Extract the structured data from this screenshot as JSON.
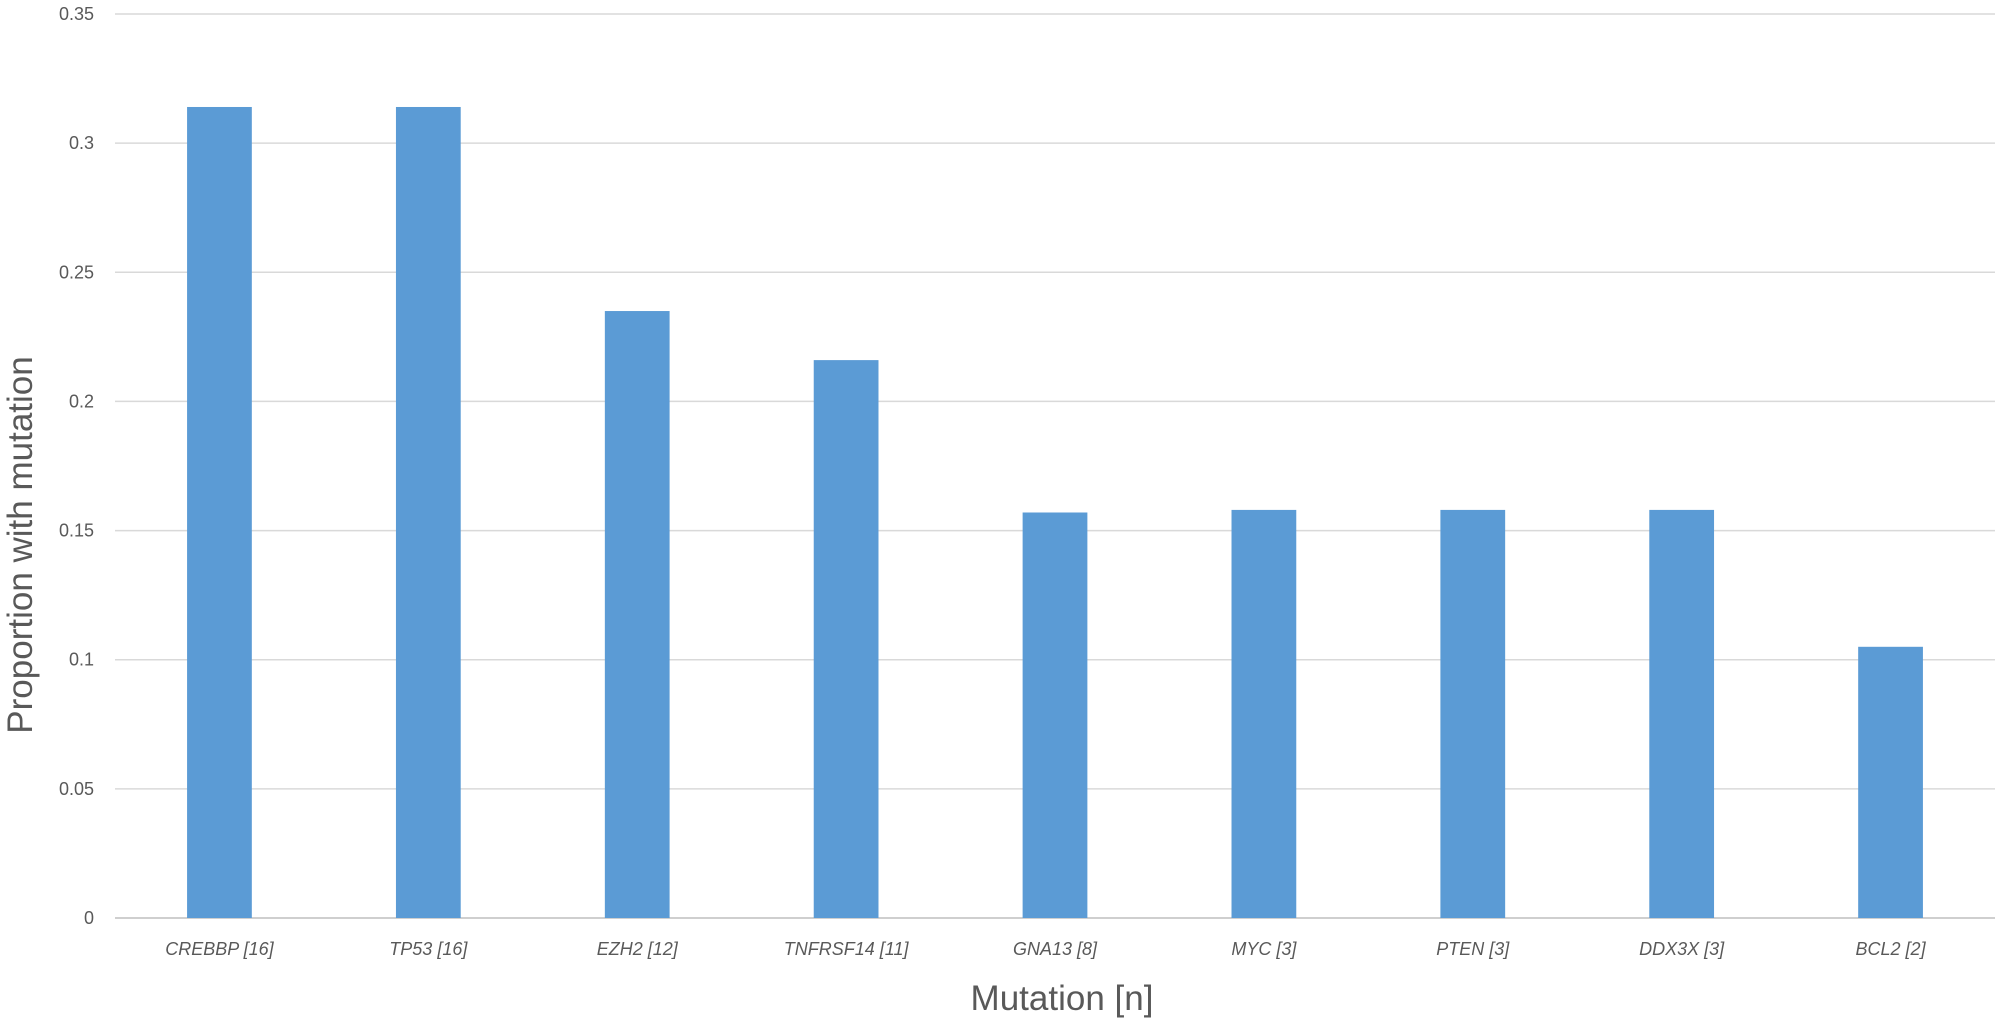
{
  "chart_data": {
    "type": "bar",
    "categories": [
      "CREBBP [16]",
      "TP53 [16]",
      "EZH2 [12]",
      "TNFRSF14 [11]",
      "GNA13 [8]",
      "MYC [3]",
      "PTEN [3]",
      "DDX3X [3]",
      "BCL2 [2]"
    ],
    "values": [
      0.314,
      0.314,
      0.235,
      0.216,
      0.157,
      0.158,
      0.158,
      0.158,
      0.105
    ],
    "xlabel": "Mutation [n]",
    "ylabel": "Proportion with mutation",
    "ylim": [
      0,
      0.35
    ],
    "yticks": [
      0,
      0.05,
      0.1,
      0.15,
      0.2,
      0.25,
      0.3,
      0.35
    ],
    "ytick_labels": [
      "0",
      "0.05",
      "0.1",
      "0.15",
      "0.2",
      "0.25",
      "0.3",
      "0.35"
    ],
    "grid": true,
    "legend": "none",
    "bar_color": "#5b9bd5",
    "grid_color": "#d9d9d9",
    "text_color": "#595959"
  }
}
